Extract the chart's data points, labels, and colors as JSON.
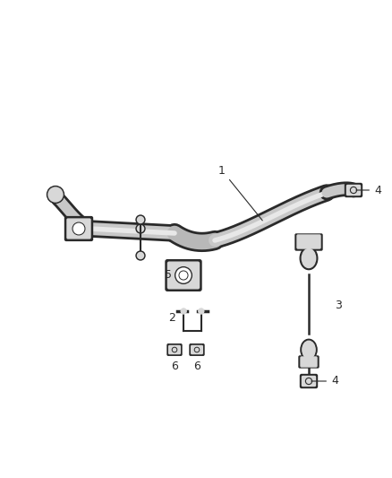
{
  "bg_color": "#ffffff",
  "line_color": "#2a2a2a",
  "fill_light": "#d8d8d8",
  "fill_mid": "#b8b8b8",
  "fill_dark": "#909090",
  "fig_width": 4.38,
  "fig_height": 5.33,
  "dpi": 100,
  "bar_color_outer": "#c8c8c8",
  "bar_color_inner": "#e8e8e8",
  "bar_color_shadow": "#a0a0a0"
}
